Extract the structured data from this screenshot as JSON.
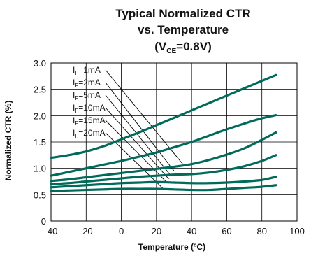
{
  "chart_data": {
    "type": "line",
    "title_line1": "Typical Normalized CTR",
    "title_line2": "vs. Temperature",
    "title_line3": {
      "open": "(V",
      "sub": "CE",
      "close": "=0.8V)"
    },
    "xlabel": "Temperature (ºC)",
    "ylabel": "Normalized CTR (%)",
    "xlim": [
      -40,
      100
    ],
    "ylim": [
      0,
      3.0
    ],
    "xticks": [
      "-40",
      "-20",
      "0",
      "20",
      "40",
      "60",
      "80",
      "100"
    ],
    "xtick_values": [
      -40,
      -20,
      0,
      20,
      40,
      60,
      80,
      100
    ],
    "yticks": [
      "0",
      "0.5",
      "1.0",
      "1.5",
      "2.0",
      "2.5",
      "3.0"
    ],
    "ytick_values": [
      0,
      0.5,
      1.0,
      1.5,
      2.0,
      2.5,
      3.0
    ],
    "grid": true,
    "line_color": "#006b5a",
    "series": [
      {
        "prefix": "I",
        "sub": "F",
        "rest": "=1mA",
        "x": [
          -40,
          -30,
          -20,
          -10,
          0,
          10,
          20,
          30,
          40,
          50,
          60,
          70,
          80,
          88
        ],
        "y": [
          1.2,
          1.25,
          1.32,
          1.42,
          1.55,
          1.68,
          1.82,
          1.96,
          2.1,
          2.24,
          2.38,
          2.52,
          2.66,
          2.77
        ]
      },
      {
        "prefix": "I",
        "sub": "F",
        "rest": "=2mA",
        "x": [
          -40,
          -30,
          -20,
          -10,
          0,
          10,
          20,
          30,
          40,
          50,
          60,
          70,
          80,
          88
        ],
        "y": [
          0.86,
          0.93,
          1.0,
          1.07,
          1.14,
          1.22,
          1.3,
          1.4,
          1.5,
          1.62,
          1.74,
          1.85,
          1.95,
          2.01
        ]
      },
      {
        "prefix": "I",
        "sub": "F",
        "rest": "=5mA",
        "x": [
          -40,
          -30,
          -20,
          -10,
          0,
          10,
          20,
          30,
          40,
          50,
          60,
          70,
          80,
          88
        ],
        "y": [
          0.76,
          0.79,
          0.83,
          0.87,
          0.91,
          0.95,
          0.99,
          1.03,
          1.08,
          1.16,
          1.26,
          1.38,
          1.54,
          1.68
        ]
      },
      {
        "prefix": "I",
        "sub": "F",
        "rest": "=10mA",
        "x": [
          -40,
          -30,
          -20,
          -10,
          0,
          10,
          20,
          30,
          40,
          50,
          60,
          70,
          80,
          88
        ],
        "y": [
          0.7,
          0.72,
          0.75,
          0.78,
          0.81,
          0.84,
          0.86,
          0.88,
          0.89,
          0.92,
          0.97,
          1.04,
          1.14,
          1.25
        ]
      },
      {
        "prefix": "I",
        "sub": "F",
        "rest": "=15mA",
        "x": [
          -40,
          -30,
          -20,
          -10,
          0,
          10,
          20,
          30,
          40,
          50,
          60,
          70,
          80,
          88
        ],
        "y": [
          0.64,
          0.66,
          0.68,
          0.7,
          0.72,
          0.73,
          0.74,
          0.73,
          0.72,
          0.72,
          0.73,
          0.75,
          0.78,
          0.84
        ]
      },
      {
        "prefix": "I",
        "sub": "F",
        "rest": "=20mA",
        "x": [
          -40,
          -30,
          -20,
          -10,
          0,
          10,
          20,
          30,
          40,
          50,
          60,
          70,
          80,
          88
        ],
        "y": [
          0.57,
          0.58,
          0.59,
          0.6,
          0.61,
          0.61,
          0.61,
          0.6,
          0.59,
          0.59,
          0.61,
          0.63,
          0.65,
          0.68
        ]
      }
    ],
    "legend_position": "top-left",
    "legend_leader_ends": [
      {
        "x": 35,
        "y": 1.08
      },
      {
        "x": 30,
        "y": 0.95
      },
      {
        "x": 28,
        "y": 0.87
      },
      {
        "x": 27,
        "y": 0.8
      },
      {
        "x": 26,
        "y": 0.73
      },
      {
        "x": 24,
        "y": 0.61
      }
    ]
  }
}
